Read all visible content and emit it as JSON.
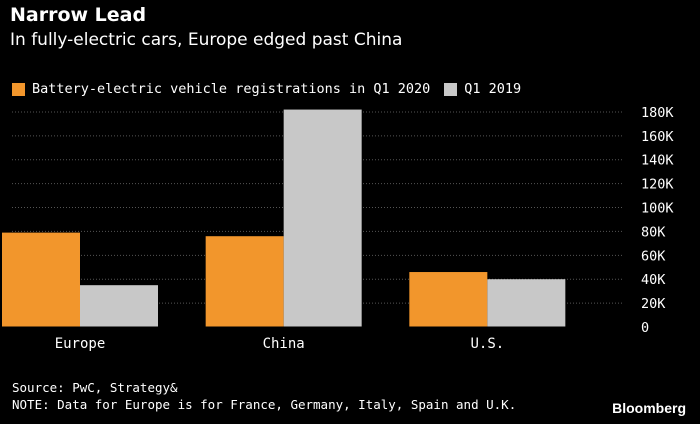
{
  "header": {
    "title": "Narrow Lead",
    "subtitle": "In fully-electric cars, Europe edged past China"
  },
  "colors": {
    "series_2020": "#f2962c",
    "series_2019": "#c8c8c8",
    "grid": "#555555"
  },
  "chart_data": {
    "type": "bar",
    "categories": [
      "Europe",
      "China",
      "U.S."
    ],
    "series": [
      {
        "name": "Battery-electric vehicle registrations in Q1 2020",
        "values": [
          79000,
          76000,
          46000
        ]
      },
      {
        "name": "Q1 2019",
        "values": [
          35000,
          182000,
          40000
        ]
      }
    ],
    "y_ticks": [
      0,
      20000,
      40000,
      60000,
      80000,
      100000,
      120000,
      140000,
      160000,
      180000
    ],
    "y_tick_labels": [
      "0",
      "20K",
      "40K",
      "60K",
      "80K",
      "100K",
      "120K",
      "140K",
      "160K",
      "180K"
    ],
    "ylim": [
      0,
      190000
    ],
    "title": "Narrow Lead",
    "subtitle": "In fully-electric cars, Europe edged past China",
    "xlabel": "",
    "ylabel": "",
    "y_axis_side": "right",
    "grid": true
  },
  "footer": {
    "source": "Source: PwC, Strategy&",
    "note": "NOTE: Data for Europe is for France, Germany, Italy, Spain and U.K.",
    "brand": "Bloomberg"
  }
}
